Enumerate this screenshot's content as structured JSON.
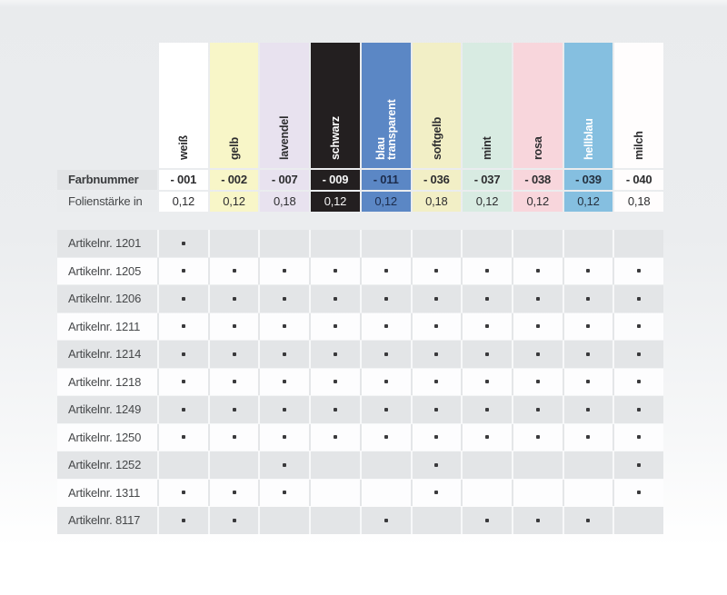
{
  "page": {
    "background_top_color": "#e9ebed",
    "background_bottom_color": "#ffffff"
  },
  "table": {
    "header_rows": {
      "farbnummer": {
        "label": "Farbnummer"
      },
      "folienstaerke": {
        "label": "Folienstärke in"
      }
    },
    "dot_icon": "square-dot-icon",
    "columns": [
      {
        "name": "weiß",
        "farbnummer": "- 001",
        "folienstaerke": "0,12",
        "swatch_color": "#ffffff",
        "name_text_color": "#2d2d2f",
        "value_text_color": "#2d2d2f"
      },
      {
        "name": "gelb",
        "farbnummer": "- 002",
        "folienstaerke": "0,12",
        "swatch_color": "#f8f6c8",
        "name_text_color": "#2d2d2f",
        "value_text_color": "#2d2d2f"
      },
      {
        "name": "lavendel",
        "farbnummer": "- 007",
        "folienstaerke": "0,18",
        "swatch_color": "#e8e2ef",
        "name_text_color": "#2d2d2f",
        "value_text_color": "#2d2d2f"
      },
      {
        "name": "schwarz",
        "farbnummer": "- 009",
        "folienstaerke": "0,12",
        "swatch_color": "#231f20",
        "name_text_color": "#ffffff",
        "value_text_color": "#f5f5f5"
      },
      {
        "name": "blau\ntransparent",
        "farbnummer": "- 011",
        "folienstaerke": "0,12",
        "swatch_color": "#5b87c5",
        "name_text_color": "#ffffff",
        "value_text_color": "#1c2c4c"
      },
      {
        "name": "softgelb",
        "farbnummer": "- 036",
        "folienstaerke": "0,18",
        "swatch_color": "#f2efc6",
        "name_text_color": "#2d2d2f",
        "value_text_color": "#2d2d2f"
      },
      {
        "name": "mint",
        "farbnummer": "- 037",
        "folienstaerke": "0,12",
        "swatch_color": "#d8ebe2",
        "name_text_color": "#2d2d2f",
        "value_text_color": "#2d2d2f"
      },
      {
        "name": "rosa",
        "farbnummer": "- 038",
        "folienstaerke": "0,12",
        "swatch_color": "#f8d6dc",
        "name_text_color": "#2d2d2f",
        "value_text_color": "#2d2d2f"
      },
      {
        "name": "hellblau",
        "farbnummer": "- 039",
        "folienstaerke": "0,12",
        "swatch_color": "#85bfe0",
        "name_text_color": "#ffffff",
        "value_text_color": "#24303e"
      },
      {
        "name": "milch",
        "farbnummer": "- 040",
        "folienstaerke": "0,18",
        "swatch_color": "#fffdfd",
        "name_text_color": "#2d2d2f",
        "value_text_color": "#2d2d2f"
      }
    ],
    "articles": [
      {
        "label": "Artikelnr. 1201",
        "dots": [
          1,
          0,
          0,
          0,
          0,
          0,
          0,
          0,
          0,
          0
        ]
      },
      {
        "label": "Artikelnr. 1205",
        "dots": [
          1,
          1,
          1,
          1,
          1,
          1,
          1,
          1,
          1,
          1
        ]
      },
      {
        "label": "Artikelnr. 1206",
        "dots": [
          1,
          1,
          1,
          1,
          1,
          1,
          1,
          1,
          1,
          1
        ]
      },
      {
        "label": "Artikelnr. 1211",
        "dots": [
          1,
          1,
          1,
          1,
          1,
          1,
          1,
          1,
          1,
          1
        ]
      },
      {
        "label": "Artikelnr. 1214",
        "dots": [
          1,
          1,
          1,
          1,
          1,
          1,
          1,
          1,
          1,
          1
        ]
      },
      {
        "label": "Artikelnr. 1218",
        "dots": [
          1,
          1,
          1,
          1,
          1,
          1,
          1,
          1,
          1,
          1
        ]
      },
      {
        "label": "Artikelnr. 1249",
        "dots": [
          1,
          1,
          1,
          1,
          1,
          1,
          1,
          1,
          1,
          1
        ]
      },
      {
        "label": "Artikelnr. 1250",
        "dots": [
          1,
          1,
          1,
          1,
          1,
          1,
          1,
          1,
          1,
          1
        ]
      },
      {
        "label": "Artikelnr. 1252",
        "dots": [
          0,
          0,
          1,
          0,
          0,
          1,
          0,
          0,
          0,
          1
        ]
      },
      {
        "label": "Artikelnr. 1311",
        "dots": [
          1,
          1,
          1,
          0,
          0,
          1,
          0,
          0,
          0,
          1
        ]
      },
      {
        "label": "Artikelnr. 8117",
        "dots": [
          1,
          1,
          0,
          0,
          1,
          0,
          1,
          1,
          1,
          0
        ]
      }
    ]
  }
}
